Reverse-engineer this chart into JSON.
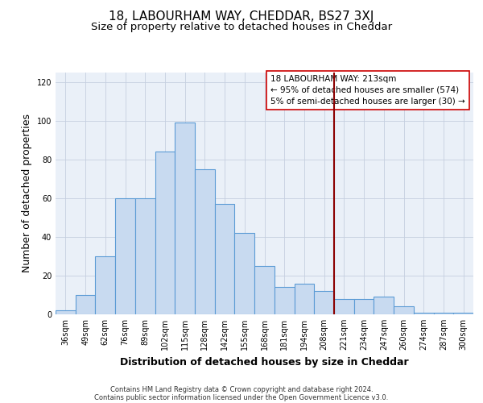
{
  "title": "18, LABOURHAM WAY, CHEDDAR, BS27 3XJ",
  "subtitle": "Size of property relative to detached houses in Cheddar",
  "xlabel": "Distribution of detached houses by size in Cheddar",
  "ylabel": "Number of detached properties",
  "bar_labels": [
    "36sqm",
    "49sqm",
    "62sqm",
    "76sqm",
    "89sqm",
    "102sqm",
    "115sqm",
    "128sqm",
    "142sqm",
    "155sqm",
    "168sqm",
    "181sqm",
    "194sqm",
    "208sqm",
    "221sqm",
    "234sqm",
    "247sqm",
    "260sqm",
    "274sqm",
    "287sqm",
    "300sqm"
  ],
  "bar_values": [
    2,
    10,
    30,
    60,
    60,
    84,
    99,
    75,
    57,
    42,
    25,
    14,
    16,
    12,
    8,
    8,
    9,
    4,
    1,
    1,
    1
  ],
  "bar_color": "#c8daf0",
  "bar_edgecolor": "#5b9bd5",
  "vline_x": 13.5,
  "vline_color": "#8b0000",
  "ylim": [
    0,
    125
  ],
  "yticks": [
    0,
    20,
    40,
    60,
    80,
    100,
    120
  ],
  "annotation_text_line1": "18 LABOURHAM WAY: 213sqm",
  "annotation_text_line2": "← 95% of detached houses are smaller (574)",
  "annotation_text_line3": "5% of semi-detached houses are larger (30) →",
  "footer_line1": "Contains HM Land Registry data © Crown copyright and database right 2024.",
  "footer_line2": "Contains public sector information licensed under the Open Government Licence v3.0.",
  "bg_color": "#eaf0f8",
  "grid_color": "#c5cfe0",
  "title_fontsize": 11,
  "subtitle_fontsize": 9.5,
  "axis_label_fontsize": 9,
  "tick_fontsize": 7,
  "annotation_fontsize": 7.5,
  "footer_fontsize": 6
}
